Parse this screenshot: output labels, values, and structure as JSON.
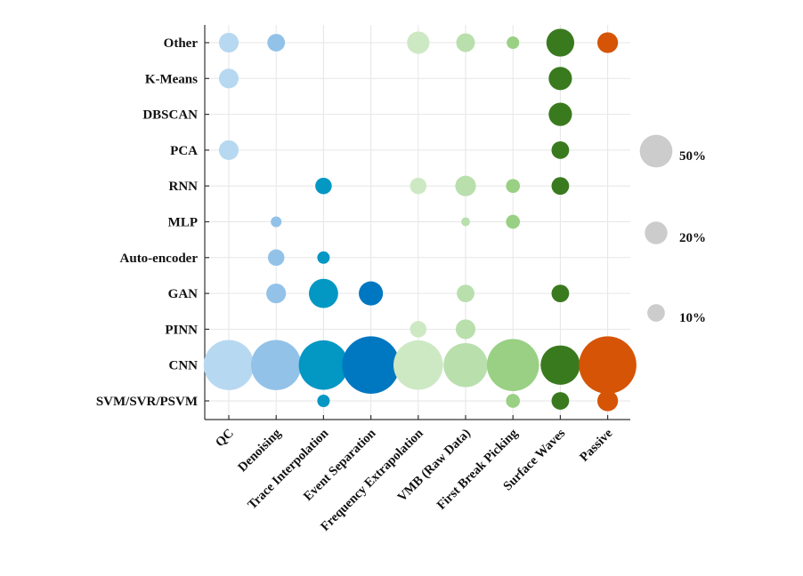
{
  "chart_data": {
    "type": "scatter",
    "subtype": "bubble-matrix",
    "x_categories": [
      "QC",
      "Denoising",
      "Trace Interpolation",
      "Event Separation",
      "Frequency Extrapolation",
      "VMB (Raw Data)",
      "First Break Picking",
      "Surface Waves",
      "Passive"
    ],
    "y_categories": [
      "Other",
      "K-Means",
      "DBSCAN",
      "PCA",
      "RNN",
      "MLP",
      "Auto-encoder",
      "GAN",
      "PINN",
      "CNN",
      "SVM/SVR/PSVM"
    ],
    "column_colors": [
      "#b7d8f1",
      "#93c2e8",
      "#0397c3",
      "#0077c1",
      "#cde9c4",
      "#b9dfad",
      "#99d083",
      "#3a7a1f",
      "#d65406"
    ],
    "size_unit": "percent",
    "points": [
      {
        "x": "QC",
        "y": "Other",
        "value": 10
      },
      {
        "x": "QC",
        "y": "K-Means",
        "value": 10
      },
      {
        "x": "QC",
        "y": "PCA",
        "value": 10
      },
      {
        "x": "QC",
        "y": "CNN",
        "value": 65
      },
      {
        "x": "Denoising",
        "y": "Other",
        "value": 8
      },
      {
        "x": "Denoising",
        "y": "MLP",
        "value": 3
      },
      {
        "x": "Denoising",
        "y": "Auto-encoder",
        "value": 7
      },
      {
        "x": "Denoising",
        "y": "GAN",
        "value": 10
      },
      {
        "x": "Denoising",
        "y": "CNN",
        "value": 65
      },
      {
        "x": "Trace Interpolation",
        "y": "RNN",
        "value": 7
      },
      {
        "x": "Trace Interpolation",
        "y": "Auto-encoder",
        "value": 4
      },
      {
        "x": "Trace Interpolation",
        "y": "GAN",
        "value": 22
      },
      {
        "x": "Trace Interpolation",
        "y": "CNN",
        "value": 63
      },
      {
        "x": "Trace Interpolation",
        "y": "SVM/SVR/PSVM",
        "value": 4
      },
      {
        "x": "Event Separation",
        "y": "GAN",
        "value": 15
      },
      {
        "x": "Event Separation",
        "y": "CNN",
        "value": 85
      },
      {
        "x": "Frequency Extrapolation",
        "y": "Other",
        "value": 13
      },
      {
        "x": "Frequency Extrapolation",
        "y": "RNN",
        "value": 7
      },
      {
        "x": "Frequency Extrapolation",
        "y": "PINN",
        "value": 7
      },
      {
        "x": "Frequency Extrapolation",
        "y": "CNN",
        "value": 63
      },
      {
        "x": "VMB (Raw Data)",
        "y": "Other",
        "value": 9
      },
      {
        "x": "VMB (Raw Data)",
        "y": "RNN",
        "value": 11
      },
      {
        "x": "VMB (Raw Data)",
        "y": "MLP",
        "value": 2
      },
      {
        "x": "VMB (Raw Data)",
        "y": "GAN",
        "value": 8
      },
      {
        "x": "VMB (Raw Data)",
        "y": "PINN",
        "value": 10
      },
      {
        "x": "VMB (Raw Data)",
        "y": "CNN",
        "value": 50
      },
      {
        "x": "First Break Picking",
        "y": "Other",
        "value": 4
      },
      {
        "x": "First Break Picking",
        "y": "RNN",
        "value": 5
      },
      {
        "x": "First Break Picking",
        "y": "MLP",
        "value": 5
      },
      {
        "x": "First Break Picking",
        "y": "CNN",
        "value": 70
      },
      {
        "x": "First Break Picking",
        "y": "SVM/SVR/PSVM",
        "value": 5
      },
      {
        "x": "Surface Waves",
        "y": "Other",
        "value": 20
      },
      {
        "x": "Surface Waves",
        "y": "K-Means",
        "value": 14
      },
      {
        "x": "Surface Waves",
        "y": "DBSCAN",
        "value": 14
      },
      {
        "x": "Surface Waves",
        "y": "PCA",
        "value": 8
      },
      {
        "x": "Surface Waves",
        "y": "RNN",
        "value": 8
      },
      {
        "x": "Surface Waves",
        "y": "GAN",
        "value": 8
      },
      {
        "x": "Surface Waves",
        "y": "CNN",
        "value": 40
      },
      {
        "x": "Surface Waves",
        "y": "SVM/SVR/PSVM",
        "value": 8
      },
      {
        "x": "Passive",
        "y": "Other",
        "value": 11
      },
      {
        "x": "Passive",
        "y": "CNN",
        "value": 85
      },
      {
        "x": "Passive",
        "y": "SVM/SVR/PSVM",
        "value": 11
      }
    ],
    "size_legend": [
      {
        "label": "50%",
        "value": 50
      },
      {
        "label": "20%",
        "value": 20
      },
      {
        "label": "10%",
        "value": 10
      }
    ],
    "legend_position": "right",
    "legend_color": "#cccccc",
    "grid": true,
    "title": "",
    "xlabel": "",
    "ylabel": ""
  }
}
